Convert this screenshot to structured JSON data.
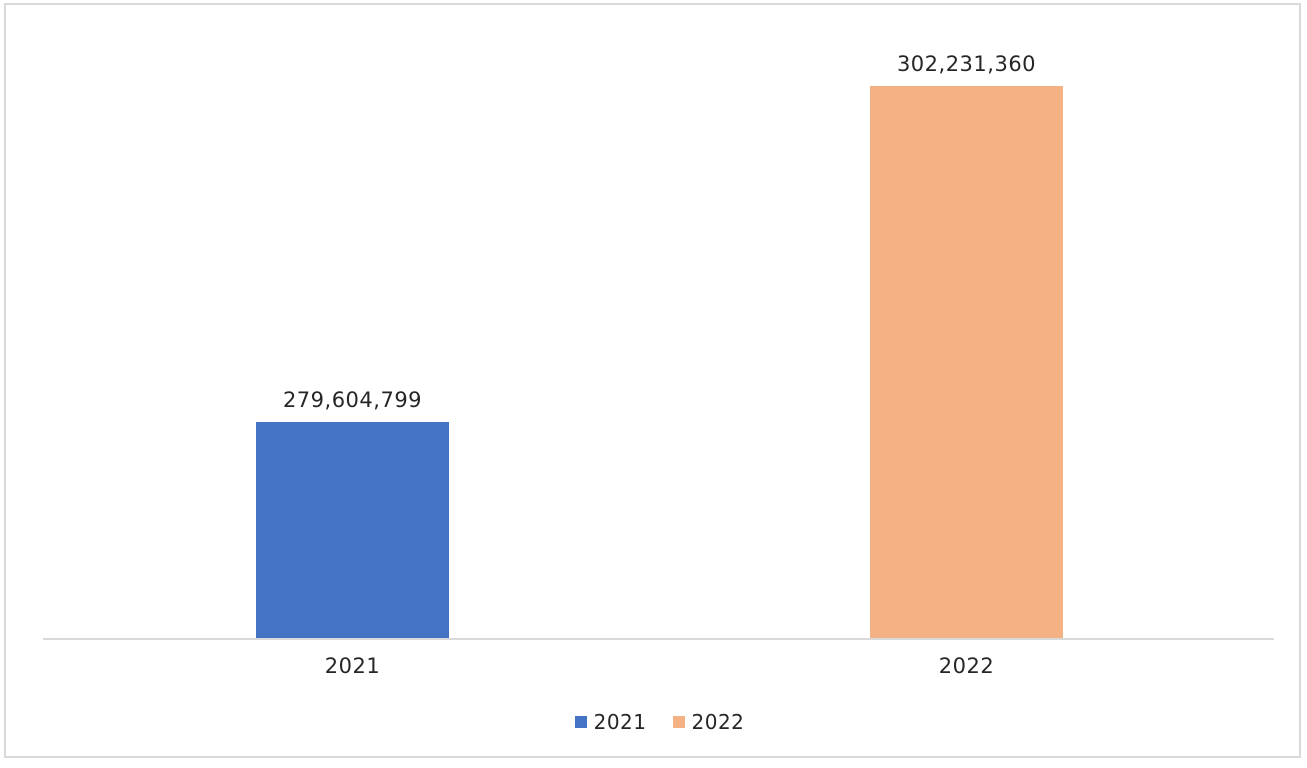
{
  "chart_data": {
    "type": "bar",
    "title": "",
    "xlabel": "",
    "ylabel": "",
    "categories": [
      "2021",
      "2022"
    ],
    "series": [
      {
        "name": "2021",
        "value": 279604799,
        "label": "279,604,799",
        "color": "#4472C4"
      },
      {
        "name": "2022",
        "value": 302231360,
        "label": "302,231,360",
        "color": "#F4B183"
      }
    ],
    "ylim": [
      265000000,
      307000000
    ],
    "y_axis_visible": false,
    "x_axis_visible": true,
    "gridlines": false,
    "data_labels_position": "outside-end",
    "legend_position": "bottom",
    "legend_entries": [
      "2021",
      "2022"
    ],
    "colors": {
      "axis_line": "#D9D9D9",
      "frame_border": "#D9D9D9",
      "text": "#262626",
      "background": "#FFFFFF"
    }
  }
}
